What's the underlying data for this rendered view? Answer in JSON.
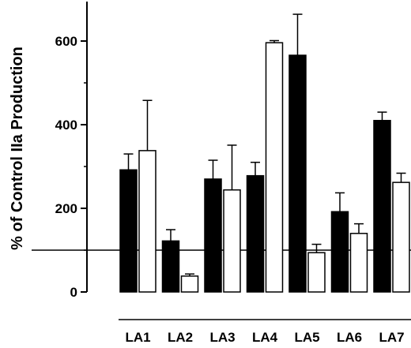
{
  "chart_data": {
    "type": "bar",
    "title": "",
    "xlabel": "",
    "ylabel": "% of Control IIa Production",
    "categories": [
      "LA1",
      "LA2",
      "LA3",
      "LA4",
      "LA5",
      "LA6",
      "LA7"
    ],
    "series": [
      {
        "fill": "#000000",
        "values": [
          292,
          122,
          270,
          278,
          566,
          192,
          410
        ],
        "errors": [
          38,
          27,
          45,
          32,
          98,
          45,
          20
        ]
      },
      {
        "fill": "#ffffff",
        "values": [
          338,
          38,
          244,
          596,
          94,
          140,
          262
        ],
        "errors": [
          120,
          5,
          107,
          5,
          20,
          23,
          22
        ]
      }
    ],
    "ylim": [
      0,
      700
    ],
    "yticks": [
      0,
      200,
      400,
      600
    ],
    "reference_line": 100,
    "grid": false,
    "legend": "none"
  }
}
